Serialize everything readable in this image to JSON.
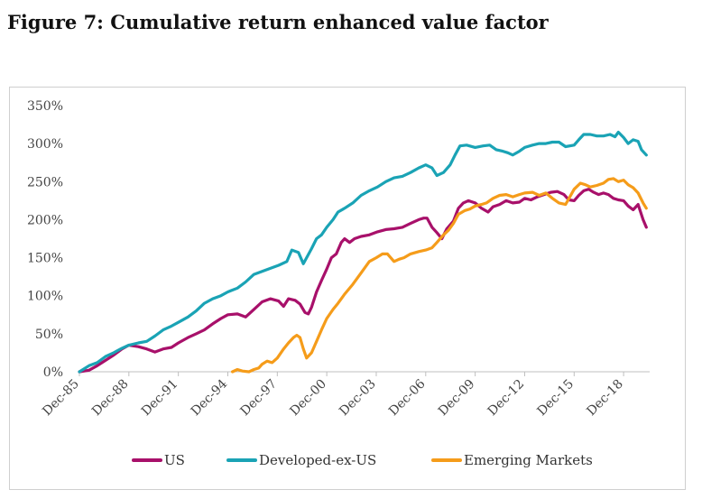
{
  "title": "Figure 7: Cumulative return enhanced value factor",
  "colors": {
    "US": "#a8106a",
    "Developed-ex-US": "#1aa3b5",
    "Emerging Markets": "#f59c1a",
    "axis": "#bfbfbf"
  },
  "chart_data": {
    "type": "line",
    "title": "Figure 7: Cumulative return enhanced value factor",
    "xlabel": "",
    "ylabel": "",
    "ylim": [
      0,
      350
    ],
    "y_unit": "%",
    "y_ticks": [
      0,
      50,
      100,
      150,
      200,
      250,
      300,
      350
    ],
    "y_tick_labels": [
      "0%",
      "50%",
      "100%",
      "150%",
      "200%",
      "250%",
      "300%",
      "350%"
    ],
    "xlim": [
      1985.92,
      2020.5
    ],
    "x_ticks": [
      1985.92,
      1988.92,
      1991.92,
      1994.92,
      1997.92,
      2000.92,
      2003.92,
      2006.92,
      2009.92,
      2012.92,
      2015.92,
      2018.92
    ],
    "x_tick_labels": [
      "Dec-85",
      "Dec-88",
      "Dec-91",
      "Dec-94",
      "Dec-97",
      "Dec-00",
      "Dec-03",
      "Dec-06",
      "Dec-09",
      "Dec-12",
      "Dec-15",
      "Dec-18"
    ],
    "grid": false,
    "legend_position": "bottom",
    "series": [
      {
        "name": "US",
        "points": [
          [
            1985.92,
            0
          ],
          [
            1986.5,
            2
          ],
          [
            1987.0,
            8
          ],
          [
            1987.5,
            15
          ],
          [
            1988.0,
            22
          ],
          [
            1988.5,
            30
          ],
          [
            1988.92,
            35
          ],
          [
            1989.5,
            33
          ],
          [
            1990.0,
            30
          ],
          [
            1990.5,
            26
          ],
          [
            1991.0,
            30
          ],
          [
            1991.5,
            32
          ],
          [
            1991.92,
            38
          ],
          [
            1992.5,
            45
          ],
          [
            1993.0,
            50
          ],
          [
            1993.5,
            55
          ],
          [
            1994.0,
            63
          ],
          [
            1994.5,
            70
          ],
          [
            1994.92,
            75
          ],
          [
            1995.5,
            76
          ],
          [
            1996.0,
            72
          ],
          [
            1996.5,
            82
          ],
          [
            1997.0,
            92
          ],
          [
            1997.5,
            96
          ],
          [
            1998.0,
            93
          ],
          [
            1998.3,
            86
          ],
          [
            1998.6,
            96
          ],
          [
            1999.0,
            94
          ],
          [
            1999.3,
            89
          ],
          [
            1999.6,
            78
          ],
          [
            1999.8,
            76
          ],
          [
            2000.0,
            85
          ],
          [
            2000.3,
            105
          ],
          [
            2000.6,
            120
          ],
          [
            2000.92,
            135
          ],
          [
            2001.2,
            150
          ],
          [
            2001.5,
            155
          ],
          [
            2001.8,
            170
          ],
          [
            2002.0,
            175
          ],
          [
            2002.3,
            170
          ],
          [
            2002.6,
            175
          ],
          [
            2003.0,
            178
          ],
          [
            2003.5,
            180
          ],
          [
            2004.0,
            184
          ],
          [
            2004.5,
            187
          ],
          [
            2005.0,
            188
          ],
          [
            2005.5,
            190
          ],
          [
            2006.0,
            195
          ],
          [
            2006.5,
            200
          ],
          [
            2006.8,
            202
          ],
          [
            2007.0,
            202
          ],
          [
            2007.3,
            190
          ],
          [
            2007.6,
            183
          ],
          [
            2007.9,
            175
          ],
          [
            2008.2,
            188
          ],
          [
            2008.6,
            198
          ],
          [
            2008.9,
            215
          ],
          [
            2009.2,
            222
          ],
          [
            2009.5,
            225
          ],
          [
            2009.92,
            222
          ],
          [
            2010.3,
            215
          ],
          [
            2010.7,
            210
          ],
          [
            2011.0,
            217
          ],
          [
            2011.4,
            220
          ],
          [
            2011.8,
            225
          ],
          [
            2012.2,
            222
          ],
          [
            2012.6,
            223
          ],
          [
            2012.92,
            228
          ],
          [
            2013.3,
            226
          ],
          [
            2013.7,
            230
          ],
          [
            2014.1,
            233
          ],
          [
            2014.5,
            236
          ],
          [
            2014.9,
            237
          ],
          [
            2015.3,
            233
          ],
          [
            2015.6,
            226
          ],
          [
            2015.92,
            225
          ],
          [
            2016.2,
            232
          ],
          [
            2016.5,
            238
          ],
          [
            2016.8,
            240
          ],
          [
            2017.1,
            236
          ],
          [
            2017.4,
            233
          ],
          [
            2017.7,
            235
          ],
          [
            2018.0,
            233
          ],
          [
            2018.3,
            228
          ],
          [
            2018.6,
            226
          ],
          [
            2018.92,
            225
          ],
          [
            2019.2,
            218
          ],
          [
            2019.5,
            213
          ],
          [
            2019.8,
            220
          ],
          [
            2020.1,
            200
          ],
          [
            2020.3,
            190
          ]
        ]
      },
      {
        "name": "Developed-ex-US",
        "points": [
          [
            1985.92,
            0
          ],
          [
            1986.5,
            8
          ],
          [
            1987.0,
            12
          ],
          [
            1987.5,
            20
          ],
          [
            1988.0,
            25
          ],
          [
            1988.5,
            31
          ],
          [
            1988.92,
            35
          ],
          [
            1989.5,
            38
          ],
          [
            1990.0,
            40
          ],
          [
            1990.5,
            47
          ],
          [
            1991.0,
            55
          ],
          [
            1991.5,
            60
          ],
          [
            1991.92,
            65
          ],
          [
            1992.5,
            72
          ],
          [
            1993.0,
            80
          ],
          [
            1993.5,
            90
          ],
          [
            1994.0,
            96
          ],
          [
            1994.5,
            100
          ],
          [
            1994.92,
            105
          ],
          [
            1995.5,
            110
          ],
          [
            1996.0,
            118
          ],
          [
            1996.5,
            128
          ],
          [
            1997.0,
            132
          ],
          [
            1997.5,
            136
          ],
          [
            1998.0,
            140
          ],
          [
            1998.5,
            145
          ],
          [
            1998.8,
            160
          ],
          [
            1999.2,
            157
          ],
          [
            1999.5,
            142
          ],
          [
            1999.7,
            150
          ],
          [
            2000.0,
            162
          ],
          [
            2000.3,
            175
          ],
          [
            2000.6,
            180
          ],
          [
            2000.92,
            190
          ],
          [
            2001.3,
            200
          ],
          [
            2001.6,
            210
          ],
          [
            2002.0,
            215
          ],
          [
            2002.5,
            222
          ],
          [
            2003.0,
            232
          ],
          [
            2003.5,
            238
          ],
          [
            2004.0,
            243
          ],
          [
            2004.5,
            250
          ],
          [
            2005.0,
            255
          ],
          [
            2005.5,
            257
          ],
          [
            2006.0,
            262
          ],
          [
            2006.5,
            268
          ],
          [
            2006.92,
            272
          ],
          [
            2007.3,
            268
          ],
          [
            2007.6,
            258
          ],
          [
            2008.0,
            262
          ],
          [
            2008.4,
            272
          ],
          [
            2008.7,
            285
          ],
          [
            2009.0,
            297
          ],
          [
            2009.4,
            298
          ],
          [
            2009.92,
            295
          ],
          [
            2010.4,
            297
          ],
          [
            2010.8,
            298
          ],
          [
            2011.2,
            292
          ],
          [
            2011.6,
            290
          ],
          [
            2011.9,
            288
          ],
          [
            2012.2,
            285
          ],
          [
            2012.6,
            290
          ],
          [
            2012.92,
            295
          ],
          [
            2013.4,
            298
          ],
          [
            2013.8,
            300
          ],
          [
            2014.2,
            300
          ],
          [
            2014.6,
            302
          ],
          [
            2015.0,
            302
          ],
          [
            2015.4,
            296
          ],
          [
            2015.92,
            298
          ],
          [
            2016.2,
            305
          ],
          [
            2016.5,
            312
          ],
          [
            2016.9,
            312
          ],
          [
            2017.3,
            310
          ],
          [
            2017.7,
            310
          ],
          [
            2018.1,
            312
          ],
          [
            2018.4,
            309
          ],
          [
            2018.6,
            315
          ],
          [
            2018.92,
            308
          ],
          [
            2019.2,
            300
          ],
          [
            2019.5,
            305
          ],
          [
            2019.8,
            303
          ],
          [
            2020.0,
            292
          ],
          [
            2020.3,
            285
          ]
        ]
      },
      {
        "name": "Emerging Markets",
        "points": [
          [
            1995.2,
            0
          ],
          [
            1995.5,
            3
          ],
          [
            1995.8,
            1
          ],
          [
            1996.2,
            0
          ],
          [
            1996.5,
            3
          ],
          [
            1996.8,
            5
          ],
          [
            1997.0,
            10
          ],
          [
            1997.3,
            14
          ],
          [
            1997.6,
            12
          ],
          [
            1997.92,
            18
          ],
          [
            1998.3,
            30
          ],
          [
            1998.6,
            38
          ],
          [
            1998.9,
            45
          ],
          [
            1999.1,
            48
          ],
          [
            1999.3,
            45
          ],
          [
            1999.5,
            30
          ],
          [
            1999.7,
            18
          ],
          [
            2000.0,
            25
          ],
          [
            2000.3,
            40
          ],
          [
            2000.6,
            55
          ],
          [
            2000.92,
            70
          ],
          [
            2001.3,
            82
          ],
          [
            2001.6,
            90
          ],
          [
            2002.0,
            102
          ],
          [
            2002.5,
            115
          ],
          [
            2003.0,
            130
          ],
          [
            2003.5,
            145
          ],
          [
            2003.92,
            150
          ],
          [
            2004.3,
            155
          ],
          [
            2004.6,
            155
          ],
          [
            2005.0,
            145
          ],
          [
            2005.3,
            148
          ],
          [
            2005.6,
            150
          ],
          [
            2006.0,
            155
          ],
          [
            2006.5,
            158
          ],
          [
            2006.92,
            160
          ],
          [
            2007.3,
            163
          ],
          [
            2007.6,
            170
          ],
          [
            2008.0,
            180
          ],
          [
            2008.3,
            186
          ],
          [
            2008.6,
            195
          ],
          [
            2008.9,
            207
          ],
          [
            2009.3,
            212
          ],
          [
            2009.6,
            214
          ],
          [
            2009.92,
            218
          ],
          [
            2010.3,
            220
          ],
          [
            2010.6,
            222
          ],
          [
            2011.0,
            228
          ],
          [
            2011.4,
            232
          ],
          [
            2011.8,
            233
          ],
          [
            2012.2,
            230
          ],
          [
            2012.6,
            233
          ],
          [
            2012.92,
            235
          ],
          [
            2013.4,
            236
          ],
          [
            2013.8,
            232
          ],
          [
            2014.2,
            235
          ],
          [
            2014.6,
            228
          ],
          [
            2015.0,
            222
          ],
          [
            2015.4,
            220
          ],
          [
            2015.92,
            240
          ],
          [
            2016.3,
            248
          ],
          [
            2016.6,
            246
          ],
          [
            2016.9,
            243
          ],
          [
            2017.3,
            245
          ],
          [
            2017.7,
            248
          ],
          [
            2018.0,
            253
          ],
          [
            2018.3,
            254
          ],
          [
            2018.6,
            250
          ],
          [
            2018.92,
            252
          ],
          [
            2019.2,
            246
          ],
          [
            2019.5,
            242
          ],
          [
            2019.8,
            235
          ],
          [
            2020.1,
            222
          ],
          [
            2020.3,
            215
          ]
        ]
      }
    ]
  }
}
